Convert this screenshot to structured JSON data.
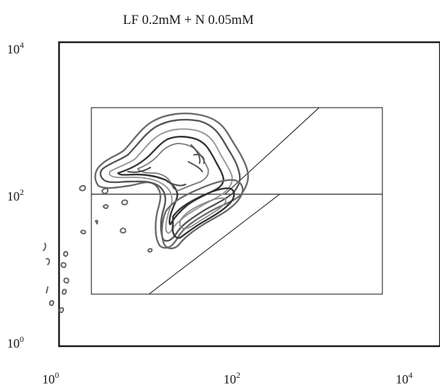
{
  "chart_data": {
    "type": "contour",
    "title": "LF 0.2mM + N 0.05mM",
    "xlabel": "",
    "ylabel": "",
    "x_scale": "log",
    "y_scale": "log",
    "xlim": [
      1,
      10000
    ],
    "ylim": [
      1,
      10000
    ],
    "x_ticks": [
      {
        "base": "10",
        "exp": "0",
        "value": 1
      },
      {
        "base": "10",
        "exp": "2",
        "value": 100
      },
      {
        "base": "10",
        "exp": "4",
        "value": 10000
      }
    ],
    "y_ticks": [
      {
        "base": "10",
        "exp": "0",
        "value": 1
      },
      {
        "base": "10",
        "exp": "2",
        "value": 100
      },
      {
        "base": "10",
        "exp": "4",
        "value": 10000
      }
    ],
    "gates": [
      {
        "type": "rectangle",
        "x": [
          2.5,
          5000
        ],
        "y_top": [
          100,
          1600
        ]
      },
      {
        "type": "rectangle",
        "x": [
          2.5,
          5000
        ],
        "y_bottom": [
          5,
          100
        ]
      },
      {
        "type": "diagonal",
        "from": [
          100,
          100
        ],
        "to": [
          1600,
          1600
        ]
      },
      {
        "type": "diagonal",
        "from": [
          10,
          5
        ],
        "to": [
          100,
          100
        ]
      }
    ],
    "populations": [
      {
        "name": "",
        "description": "main contour cluster",
        "center": [
          30,
          200
        ]
      }
    ],
    "grid": false,
    "legend": "none"
  }
}
